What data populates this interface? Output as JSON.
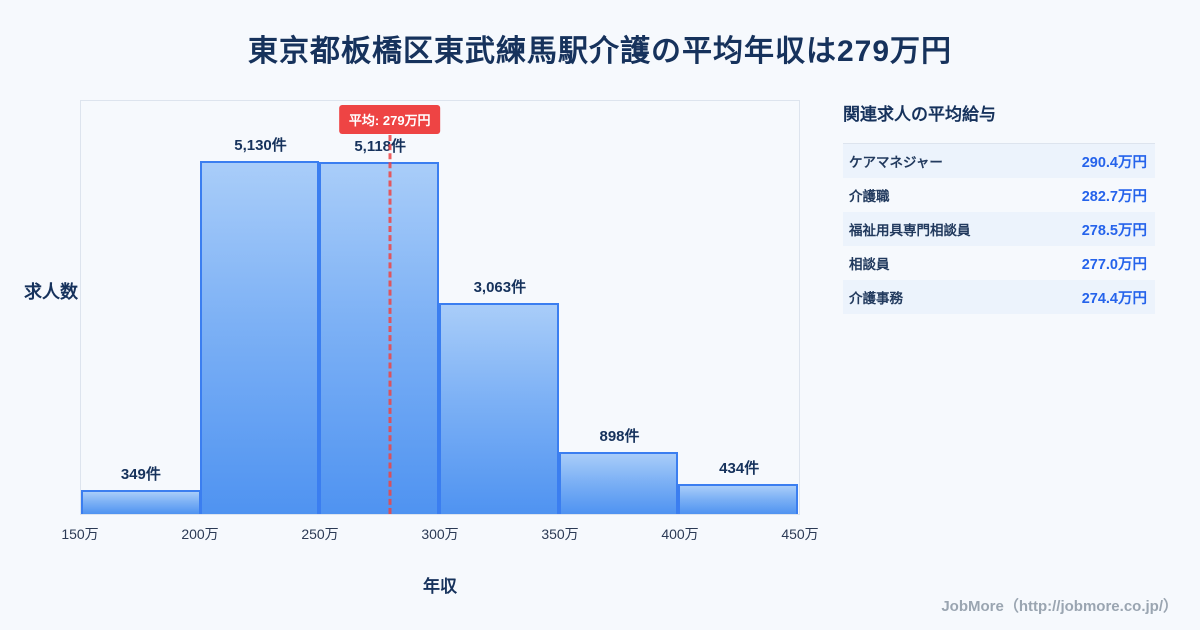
{
  "title": "東京都板橋区東武練馬駅介護の平均年収は279万円",
  "chart_data": {
    "type": "bar",
    "title": "東京都板橋区東武練馬駅介護の平均年収は279万円",
    "categories": [
      "150万-200万",
      "200万-250万",
      "250万-300万",
      "300万-350万",
      "350万-400万",
      "400万-450万"
    ],
    "values": [
      349,
      5130,
      5118,
      3063,
      898,
      434
    ],
    "value_labels": [
      "349件",
      "5,130件",
      "5,118件",
      "3,063件",
      "898件",
      "434件"
    ],
    "x_tick_labels": [
      "150万",
      "200万",
      "250万",
      "300万",
      "350万",
      "400万",
      "450万"
    ],
    "x_range": [
      150,
      450
    ],
    "xlabel": "年収",
    "ylabel": "求人数",
    "ylim": [
      0,
      6000
    ],
    "grid": false,
    "legend": "none",
    "average_value": 279,
    "average_label": "平均: 279万円"
  },
  "side_panel": {
    "title": "関連求人の平均給与",
    "rows": [
      {
        "label": "ケアマネジャー",
        "value": "290.4万円"
      },
      {
        "label": "介護職",
        "value": "282.7万円"
      },
      {
        "label": "福祉用具専門相談員",
        "value": "278.5万円"
      },
      {
        "label": "相談員",
        "value": "277.0万円"
      },
      {
        "label": "介護事務",
        "value": "274.4万円"
      }
    ]
  },
  "footer": {
    "credit": "JobMore（http://jobmore.co.jp/）"
  },
  "colors": {
    "background": "#f6f9fd",
    "title_navy": "#16325c",
    "bar_fill_top": "#a9cdf9",
    "bar_fill_bottom": "#4f93f1",
    "bar_border": "#3b7ef0",
    "average_red": "#ee4444",
    "value_blue": "#2563eb",
    "stripe_blue": "#ecf3fc"
  }
}
